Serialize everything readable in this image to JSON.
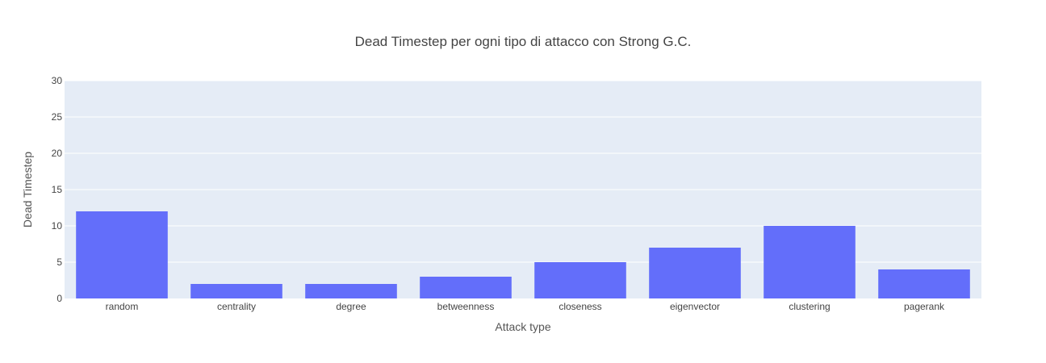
{
  "chart_data": {
    "type": "bar",
    "title": "Dead Timestep per ogni tipo di attacco con Strong G.C.",
    "xlabel": "Attack type",
    "ylabel": "Dead Timestep",
    "categories": [
      "random",
      "centrality",
      "degree",
      "betweenness",
      "closeness",
      "eigenvector",
      "clustering",
      "pagerank"
    ],
    "values": [
      12,
      2,
      2,
      3,
      5,
      7,
      10,
      4
    ],
    "ylim": [
      0,
      30
    ],
    "yticks": [
      0,
      5,
      10,
      15,
      20,
      25,
      30
    ],
    "grid": true,
    "colors": {
      "bar": "#636efa",
      "plot_background": "#e5ecf6",
      "gridline": "#ffffff"
    }
  }
}
